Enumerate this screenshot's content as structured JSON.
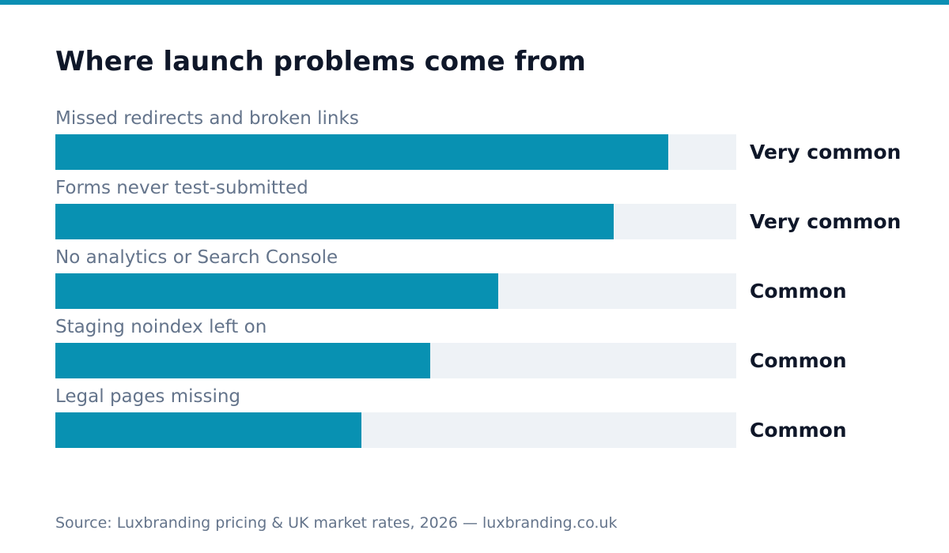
{
  "chart_data": {
    "type": "bar",
    "orientation": "horizontal",
    "title": "Where launch problems come from",
    "categories": [
      "Missed redirects and broken links",
      "Forms never test-submitted",
      "No analytics or Search Console",
      "Staging noindex left on",
      "Legal pages missing"
    ],
    "values": [
      0.9,
      0.82,
      0.65,
      0.55,
      0.45
    ],
    "value_labels": [
      "Very common",
      "Very common",
      "Common",
      "Common",
      "Common"
    ],
    "xlim": [
      0,
      1
    ],
    "grid": false,
    "legend": "none",
    "colors": {
      "bar": "#0891b2",
      "track": "#eef2f6",
      "accent_stripe": "#0b8fb3"
    }
  },
  "footer": {
    "source": "Source: Luxbranding pricing & UK market rates, 2026 — luxbranding.co.uk"
  }
}
